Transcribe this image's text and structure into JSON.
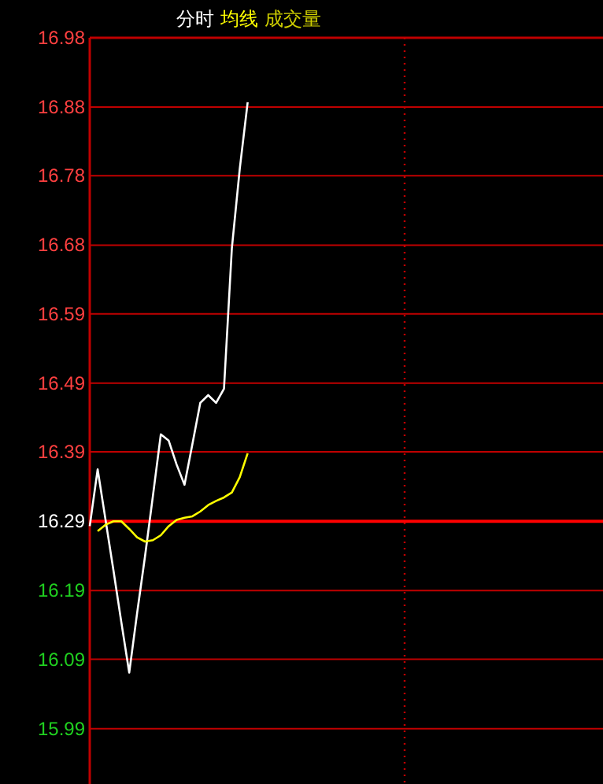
{
  "chart_data": {
    "type": "line",
    "ylim": [
      15.915,
      16.98
    ],
    "categories": [
      null,
      null,
      null,
      null,
      null,
      null,
      null,
      null,
      null,
      null,
      null,
      null,
      null,
      null,
      null,
      null,
      null,
      null,
      null,
      null,
      null,
      null,
      null,
      null,
      null,
      null,
      null,
      null,
      null,
      null,
      null,
      null,
      null,
      null,
      null,
      null,
      null,
      null,
      null,
      null,
      null,
      null,
      null,
      null,
      null,
      null,
      null,
      null,
      null,
      null,
      null,
      null,
      null,
      null,
      null,
      null,
      null,
      null,
      null,
      null,
      null,
      null,
      null,
      null,
      null,
      null
    ],
    "yticks": [
      {
        "value": 15.994,
        "label": "15.99"
      },
      {
        "value": 16.093,
        "label": "16.09"
      },
      {
        "value": 16.191,
        "label": "16.19"
      },
      {
        "value": 16.29,
        "label": "16.29"
      },
      {
        "value": 16.389,
        "label": "16.39"
      },
      {
        "value": 16.487,
        "label": "16.49"
      },
      {
        "value": 16.586,
        "label": "16.59"
      },
      {
        "value": 16.684,
        "label": "16.68"
      },
      {
        "value": 16.783,
        "label": "16.78"
      },
      {
        "value": 16.881,
        "label": "16.88"
      },
      {
        "value": 16.98,
        "label": "16.98"
      }
    ],
    "tick_labels": "y",
    "grid": "y",
    "series": [
      {
        "name": "分时",
        "color": "#ffffff",
        "values": [
          16.283,
          16.364,
          16.292,
          16.22,
          16.146,
          16.074,
          16.159,
          16.24,
          16.326,
          16.414,
          16.405,
          16.371,
          16.342,
          16.4,
          16.459,
          16.47,
          16.459,
          16.479,
          16.68,
          16.793,
          16.888,
          null,
          null,
          null,
          null,
          null,
          null,
          null,
          null,
          null,
          null,
          null,
          null,
          null,
          null,
          null,
          null,
          null,
          null,
          null,
          null,
          null,
          null,
          null,
          null,
          null,
          null,
          null,
          null,
          null,
          null,
          null,
          null,
          null,
          null,
          null,
          null,
          null,
          null,
          null,
          null,
          null,
          null,
          null,
          null,
          null
        ]
      },
      {
        "name": "均线",
        "color": "#ffff00",
        "values": [
          null,
          16.276,
          16.285,
          16.29,
          16.29,
          16.279,
          16.267,
          16.261,
          16.263,
          16.27,
          16.283,
          16.292,
          16.295,
          16.297,
          16.304,
          16.313,
          16.319,
          16.324,
          16.331,
          16.353,
          16.387,
          null,
          null,
          null,
          null,
          null,
          null,
          null,
          null,
          null,
          null,
          null,
          null,
          null,
          null,
          null,
          null,
          null,
          null,
          null,
          null,
          null,
          null,
          null,
          null,
          null,
          null,
          null,
          null,
          null,
          null,
          null,
          null,
          null,
          null,
          null,
          null,
          null,
          null,
          null,
          null,
          null,
          null,
          null,
          null,
          null
        ]
      }
    ],
    "annotations": [
      "成交量"
    ],
    "ref_lines": [
      {
        "axis": "y",
        "value": 16.29,
        "color": "#ff0000",
        "line_style": "solid"
      }
    ]
  }
}
